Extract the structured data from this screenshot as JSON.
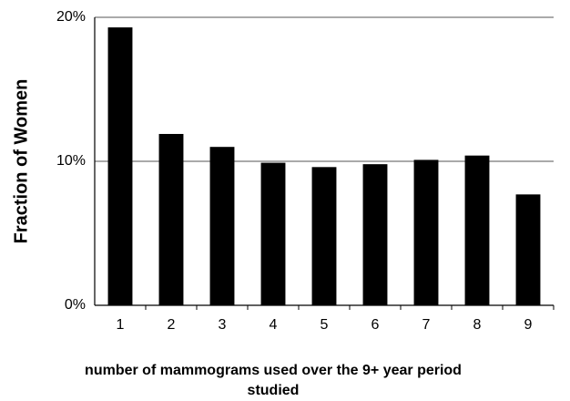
{
  "chart_data": {
    "type": "bar",
    "y_label": "Fraction of Women",
    "x_label": "number of mammograms used over the 9+ year period studied",
    "categories": [
      "1",
      "2",
      "3",
      "4",
      "5",
      "6",
      "7",
      "8",
      "9"
    ],
    "values": [
      19.3,
      11.9,
      11.0,
      9.9,
      9.6,
      9.8,
      10.1,
      10.4,
      7.7
    ],
    "color": "#000000",
    "ylim": [
      0,
      20
    ],
    "yticks": [
      {
        "value": 0,
        "label": "0%"
      },
      {
        "value": 10,
        "label": "10%"
      },
      {
        "value": 20,
        "label": "20%"
      }
    ],
    "grid": true
  }
}
